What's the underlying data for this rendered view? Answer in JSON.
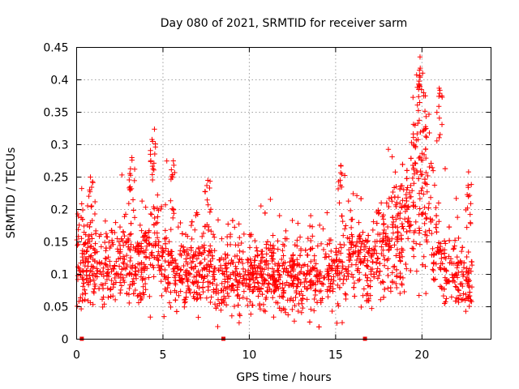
{
  "chart_data": {
    "type": "scatter",
    "title": "Day 080 of 2021, SRMTID for receiver sarm",
    "xlabel": "GPS time / hours",
    "ylabel": "SRMTID / TECUs",
    "xlim": [
      0,
      24
    ],
    "ylim": [
      0,
      0.45
    ],
    "xticks": [
      0,
      5,
      10,
      15,
      20
    ],
    "yticks": [
      0,
      0.05,
      0.1,
      0.15,
      0.2,
      0.25,
      0.3,
      0.35,
      0.4,
      0.45
    ],
    "xtick_labels": [
      "0",
      "5",
      "10",
      "15",
      "20"
    ],
    "ytick_labels": [
      "0",
      "0.05",
      "0.1",
      "0.15",
      "0.2",
      "0.25",
      "0.3",
      "0.35",
      "0.4",
      "0.45"
    ],
    "grid": true,
    "marker": "plus",
    "color": "#ff0000",
    "marker_color": "#e00000",
    "gap_markers": [
      0.3,
      8.5,
      16.7
    ],
    "profile": [
      [
        0,
        0.12
      ],
      [
        1,
        0.11
      ],
      [
        2,
        0.115
      ],
      [
        3,
        0.12
      ],
      [
        4,
        0.125
      ],
      [
        4.5,
        0.15
      ],
      [
        5,
        0.12
      ],
      [
        6,
        0.11
      ],
      [
        7,
        0.11
      ],
      [
        8,
        0.1
      ],
      [
        9,
        0.1
      ],
      [
        10,
        0.095
      ],
      [
        11,
        0.1
      ],
      [
        12,
        0.095
      ],
      [
        13,
        0.095
      ],
      [
        14,
        0.1
      ],
      [
        15,
        0.11
      ],
      [
        16,
        0.13
      ],
      [
        17,
        0.12
      ],
      [
        18,
        0.15
      ],
      [
        19,
        0.16
      ],
      [
        19.8,
        0.26
      ],
      [
        20.3,
        0.22
      ],
      [
        21,
        0.12
      ],
      [
        22,
        0.1
      ],
      [
        23,
        0.08
      ]
    ],
    "highlights": [
      {
        "x": 0.8,
        "y": 0.25
      },
      {
        "x": 3.2,
        "y": 0.28
      },
      {
        "x": 4.4,
        "y": 0.305
      },
      {
        "x": 5.6,
        "y": 0.275
      },
      {
        "x": 7.6,
        "y": 0.245
      },
      {
        "x": 15.3,
        "y": 0.268
      },
      {
        "x": 19.6,
        "y": 0.33
      },
      {
        "x": 19.9,
        "y": 0.418
      },
      {
        "x": 20.1,
        "y": 0.38
      },
      {
        "x": 21.0,
        "y": 0.387
      },
      {
        "x": 22.7,
        "y": 0.258
      }
    ],
    "n_points": 2200
  }
}
